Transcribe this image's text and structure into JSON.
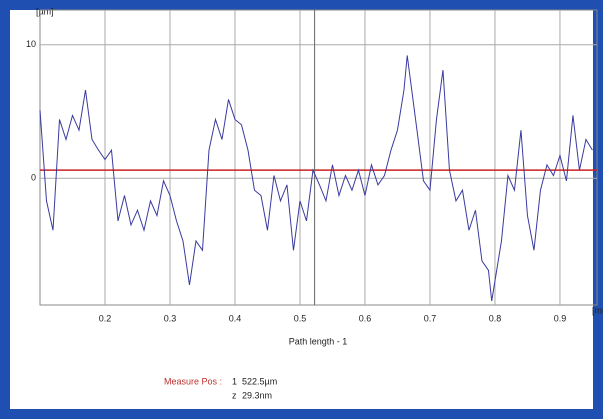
{
  "chart_data": {
    "type": "line",
    "y_unit_label": "[µm]",
    "x_unit_label": "[mm]",
    "x_axis_label": "Path length - 1",
    "x": [
      0.1,
      0.11,
      0.12,
      0.13,
      0.14,
      0.15,
      0.16,
      0.17,
      0.18,
      0.19,
      0.2,
      0.21,
      0.22,
      0.23,
      0.24,
      0.25,
      0.26,
      0.27,
      0.28,
      0.29,
      0.3,
      0.31,
      0.32,
      0.33,
      0.34,
      0.35,
      0.36,
      0.37,
      0.38,
      0.39,
      0.4,
      0.41,
      0.42,
      0.43,
      0.44,
      0.45,
      0.46,
      0.47,
      0.48,
      0.49,
      0.5,
      0.51,
      0.52,
      0.53,
      0.54,
      0.55,
      0.56,
      0.57,
      0.58,
      0.59,
      0.6,
      0.61,
      0.62,
      0.63,
      0.64,
      0.65,
      0.66,
      0.665,
      0.68,
      0.69,
      0.7,
      0.71,
      0.72,
      0.73,
      0.74,
      0.75,
      0.76,
      0.77,
      0.78,
      0.79,
      0.795,
      0.81,
      0.82,
      0.83,
      0.84,
      0.85,
      0.86,
      0.87,
      0.88,
      0.89,
      0.9,
      0.91,
      0.92,
      0.93,
      0.94,
      0.95
    ],
    "series": [
      {
        "color": "#3a3aa0",
        "values": [
          5.1,
          -1.7,
          -3.9,
          4.4,
          2.9,
          4.7,
          3.6,
          6.6,
          2.9,
          2.1,
          1.4,
          2.1,
          -3.2,
          -1.3,
          -3.5,
          -2.4,
          -3.9,
          -1.7,
          -2.8,
          -0.2,
          -1.3,
          -3.2,
          -4.7,
          -8.0,
          -4.7,
          -5.4,
          2.1,
          4.4,
          2.9,
          5.9,
          4.4,
          4.0,
          2.1,
          -0.9,
          -1.3,
          -3.9,
          0.2,
          -1.7,
          -0.5,
          -5.4,
          -1.7,
          -3.2,
          0.6,
          -0.5,
          -1.7,
          1.0,
          -1.3,
          0.2,
          -0.9,
          0.6,
          -1.3,
          1.0,
          -0.5,
          0.2,
          2.1,
          3.6,
          6.6,
          9.2,
          3.6,
          -0.2,
          -0.9,
          4.4,
          8.1,
          0.6,
          -1.7,
          -0.9,
          -3.9,
          -2.4,
          -6.2,
          -6.9,
          -9.2,
          -4.7,
          0.2,
          -0.9,
          3.6,
          -2.8,
          -5.4,
          -0.9,
          1.0,
          0.2,
          1.7,
          -0.2,
          4.7,
          0.6,
          2.9,
          2.1
        ]
      }
    ],
    "xlim": [
      0.1,
      0.957
    ],
    "ylim": [
      -9.5,
      12.6
    ],
    "xticks": [
      0.2,
      0.3,
      0.4,
      0.5,
      0.6,
      0.7,
      0.8,
      0.9
    ],
    "yticks": [
      0,
      10
    ],
    "grid": true,
    "reference_line": {
      "value": 0.6,
      "color": "#cc2020"
    },
    "cursor_x": 0.5225,
    "readout": {
      "label": "Measure Pos :",
      "index": "1",
      "value": "522.5µm",
      "z_label": "z",
      "z_value": "29.3nm"
    }
  }
}
